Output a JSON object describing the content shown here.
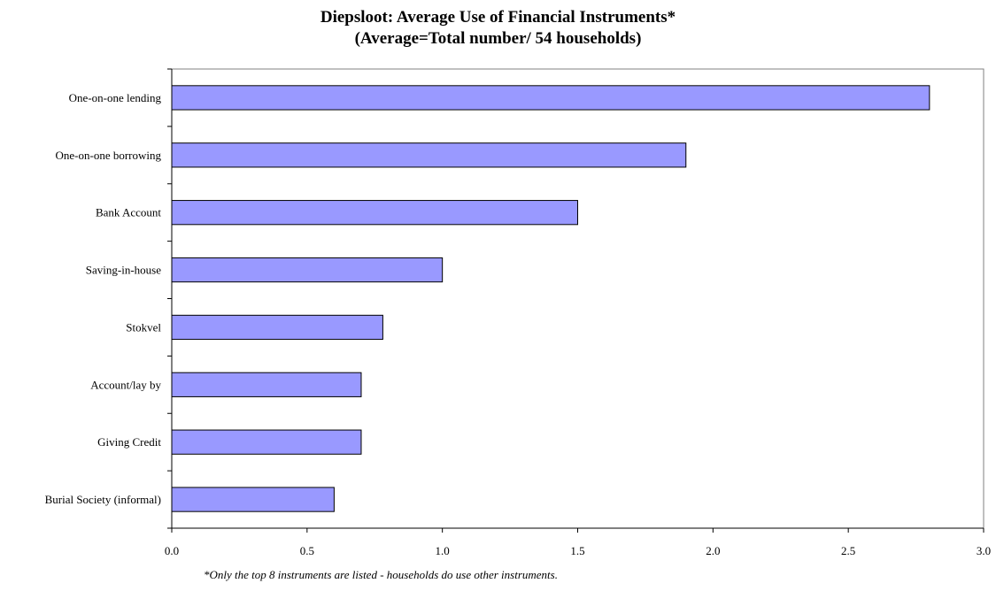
{
  "chart_data": {
    "type": "bar",
    "orientation": "horizontal",
    "title": "Diepsloot: Average Use of Financial Instruments*",
    "subtitle": "(Average=Total number/ 54 households)",
    "categories": [
      "One-on-one lending",
      "One-on-one borrowing",
      "Bank Account",
      "Saving-in-house",
      "Stokvel",
      "Account/lay by",
      "Giving Credit",
      "Burial Society (informal)"
    ],
    "values": [
      2.8,
      1.9,
      1.5,
      1.0,
      0.78,
      0.7,
      0.7,
      0.6
    ],
    "xlim": [
      0,
      3.0
    ],
    "x_ticks": [
      "0.0",
      "0.5",
      "1.0",
      "1.5",
      "2.0",
      "2.5",
      "3.0"
    ],
    "xlabel": "",
    "ylabel": "",
    "grid": false,
    "legend": "none",
    "bar_color": "#9999ff",
    "bar_edge_color": "#000000",
    "footnote": "*Only the top 8 instruments are listed - households do use other instruments."
  }
}
